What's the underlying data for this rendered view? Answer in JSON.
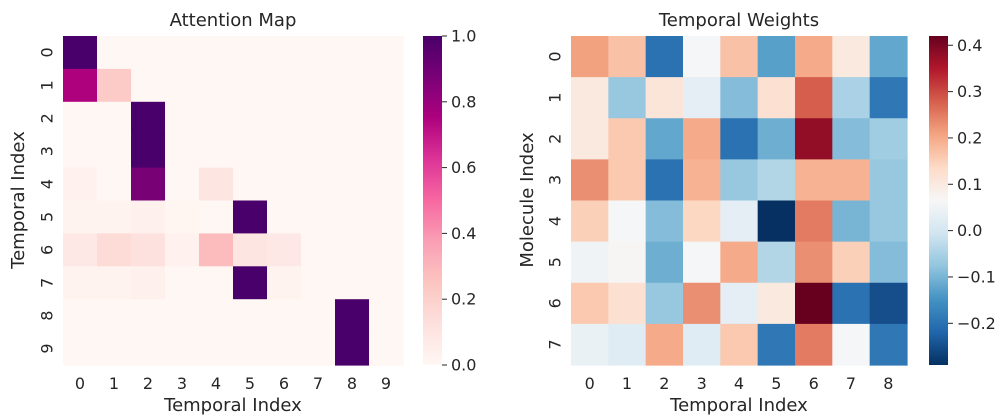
{
  "chart_data": [
    {
      "type": "heatmap",
      "title": "Attention Map",
      "xlabel": "Temporal Index",
      "ylabel": "Temporal Index",
      "x_ticks": [
        "0",
        "1",
        "2",
        "3",
        "4",
        "5",
        "6",
        "7",
        "8",
        "9"
      ],
      "y_ticks": [
        "0",
        "1",
        "2",
        "3",
        "4",
        "5",
        "6",
        "7",
        "8",
        "9"
      ],
      "colormap": "RdPu",
      "vmin": 0.0,
      "vmax": 1.0,
      "colorbar_ticks": [
        "0.0",
        "0.2",
        "0.4",
        "0.6",
        "0.8",
        "1.0"
      ],
      "colorbar_tick_values": [
        0.0,
        0.2,
        0.4,
        0.6,
        0.8,
        1.0
      ],
      "values": [
        [
          1.0,
          0.0,
          0.0,
          0.0,
          0.0,
          0.0,
          0.0,
          0.0,
          0.0,
          0.0
        ],
        [
          0.75,
          0.22,
          0.0,
          0.0,
          0.0,
          0.0,
          0.0,
          0.0,
          0.0,
          0.0
        ],
        [
          0.0,
          0.0,
          1.0,
          0.0,
          0.0,
          0.0,
          0.0,
          0.0,
          0.0,
          0.0
        ],
        [
          0.0,
          0.0,
          1.0,
          0.0,
          0.0,
          0.0,
          0.0,
          0.0,
          0.0,
          0.0
        ],
        [
          0.03,
          0.0,
          0.88,
          0.0,
          0.1,
          0.0,
          0.0,
          0.0,
          0.0,
          0.0
        ],
        [
          0.02,
          0.02,
          0.04,
          0.01,
          0.0,
          1.0,
          0.0,
          0.0,
          0.0,
          0.0
        ],
        [
          0.08,
          0.15,
          0.12,
          0.03,
          0.28,
          0.1,
          0.08,
          0.0,
          0.0,
          0.0
        ],
        [
          0.02,
          0.02,
          0.04,
          0.0,
          0.0,
          1.0,
          0.02,
          0.0,
          0.0,
          0.0
        ],
        [
          0.0,
          0.0,
          0.0,
          0.0,
          0.0,
          0.0,
          0.0,
          0.0,
          1.0,
          0.0
        ],
        [
          0.0,
          0.0,
          0.0,
          0.0,
          0.0,
          0.0,
          0.0,
          0.0,
          1.0,
          0.0
        ]
      ]
    },
    {
      "type": "heatmap",
      "title": "Temporal Weights",
      "xlabel": "Temporal Index",
      "ylabel": "Molecule Index",
      "x_ticks": [
        "0",
        "1",
        "2",
        "3",
        "4",
        "5",
        "6",
        "7",
        "8"
      ],
      "y_ticks": [
        "0",
        "1",
        "2",
        "3",
        "4",
        "5",
        "6",
        "7"
      ],
      "colormap": "RdBu_r",
      "vmin": -0.29,
      "vmax": 0.42,
      "colorbar_ticks": [
        "−0.2",
        "−0.1",
        "0.0",
        "0.1",
        "0.2",
        "0.3",
        "0.4"
      ],
      "colorbar_tick_values": [
        -0.2,
        -0.1,
        0.0,
        0.1,
        0.2,
        0.3,
        0.4
      ],
      "values": [
        [
          0.21,
          0.17,
          -0.2,
          0.06,
          0.17,
          -0.13,
          0.2,
          0.1,
          -0.12
        ],
        [
          0.1,
          -0.07,
          0.11,
          0.03,
          -0.09,
          0.12,
          0.28,
          -0.05,
          -0.19
        ],
        [
          0.1,
          0.16,
          -0.12,
          0.2,
          -0.2,
          -0.11,
          0.38,
          -0.09,
          -0.06
        ],
        [
          0.23,
          0.16,
          -0.2,
          0.19,
          -0.07,
          -0.04,
          0.19,
          0.19,
          -0.07
        ],
        [
          0.15,
          0.06,
          -0.09,
          0.14,
          0.03,
          -0.29,
          0.25,
          -0.1,
          -0.07
        ],
        [
          0.05,
          0.07,
          -0.11,
          0.06,
          0.2,
          -0.04,
          0.23,
          0.15,
          -0.09
        ],
        [
          0.16,
          0.12,
          -0.07,
          0.23,
          0.03,
          0.1,
          0.42,
          -0.2,
          -0.25
        ],
        [
          0.04,
          0.02,
          0.2,
          0.02,
          0.16,
          -0.19,
          0.25,
          0.06,
          -0.19
        ]
      ]
    }
  ]
}
